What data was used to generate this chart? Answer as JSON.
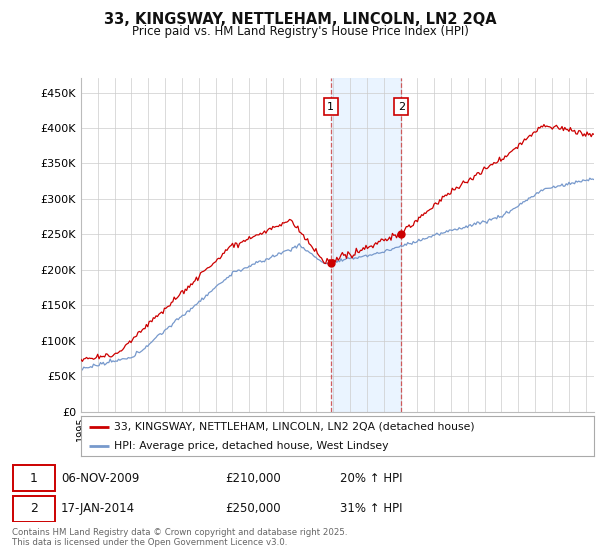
{
  "title": "33, KINGSWAY, NETTLEHAM, LINCOLN, LN2 2QA",
  "subtitle": "Price paid vs. HM Land Registry's House Price Index (HPI)",
  "ylim": [
    0,
    470000
  ],
  "yticks": [
    0,
    50000,
    100000,
    150000,
    200000,
    250000,
    300000,
    350000,
    400000,
    450000
  ],
  "ytick_labels": [
    "£0",
    "£50K",
    "£100K",
    "£150K",
    "£200K",
    "£250K",
    "£300K",
    "£350K",
    "£400K",
    "£450K"
  ],
  "hpi_color": "#7799cc",
  "price_color": "#cc0000",
  "marker1_price": 210000,
  "marker1_hpi_pct": "20% ↑ HPI",
  "marker1_date_str": "06-NOV-2009",
  "marker2_price": 250000,
  "marker2_hpi_pct": "31% ↑ HPI",
  "marker2_date_str": "17-JAN-2014",
  "legend_line1": "33, KINGSWAY, NETTLEHAM, LINCOLN, LN2 2QA (detached house)",
  "legend_line2": "HPI: Average price, detached house, West Lindsey",
  "footer": "Contains HM Land Registry data © Crown copyright and database right 2025.\nThis data is licensed under the Open Government Licence v3.0.",
  "background_color": "#ffffff",
  "grid_color": "#cccccc",
  "shaded_color": "#ddeeff",
  "marker1_x": 2009.846,
  "marker2_x": 2014.046,
  "xlim_left": 1995.0,
  "xlim_right": 2025.5
}
